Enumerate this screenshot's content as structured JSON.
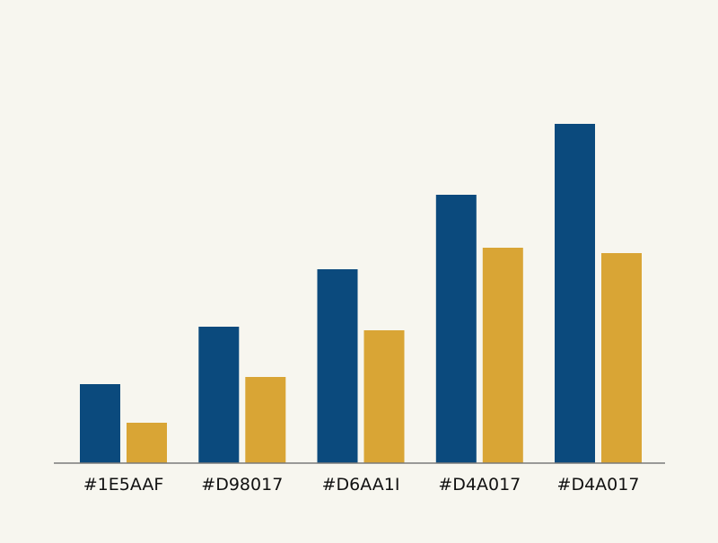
{
  "chart_data": {
    "type": "bar",
    "title": "",
    "xlabel": "",
    "ylabel": "",
    "categories": [
      "#1E5AAF",
      "#D98017",
      "#D6AA1I",
      "#D4A017",
      "#D4A017"
    ],
    "series": [
      {
        "values": [
          88,
          152,
          216,
          299,
          378
        ]
      },
      {
        "values": [
          45,
          96,
          148,
          240,
          234
        ]
      }
    ],
    "ylim": [
      0,
      400
    ],
    "grid": false,
    "legend": "none",
    "colors": [
      "#0b4a7d",
      "#d9a535"
    ],
    "background": "#f7f6ef",
    "axis_color": "#7a7a7a"
  }
}
